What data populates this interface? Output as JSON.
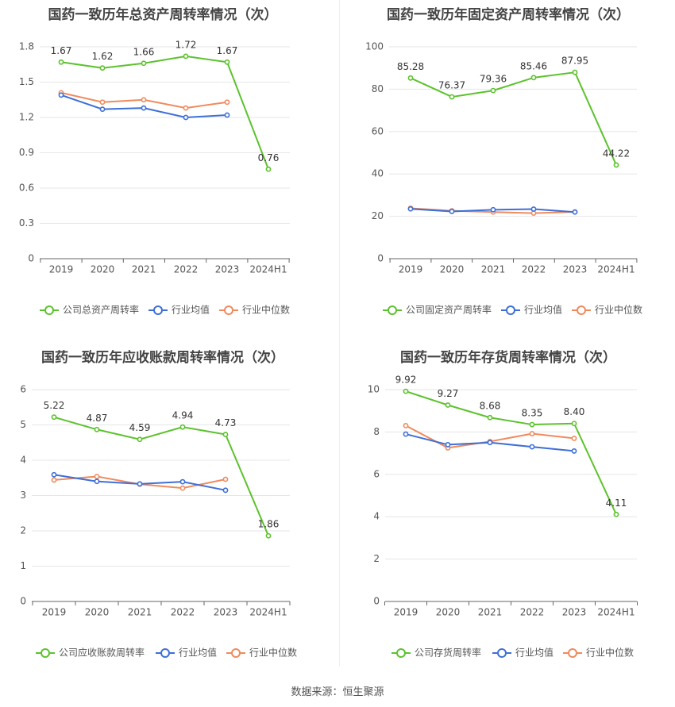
{
  "source_text": "数据来源：恒生聚源",
  "colors": {
    "company": "#5cc22d",
    "avg": "#3e6fd7",
    "median": "#f08a5d",
    "grid": "#e6e6e6",
    "axis": "#666666"
  },
  "chart_data": [
    {
      "type": "line",
      "title": "国药一致历年总资产周转率情况（次）",
      "categories": [
        "2019",
        "2020",
        "2021",
        "2022",
        "2023",
        "2024H1"
      ],
      "yticks": [
        "0",
        "0.3",
        "0.6",
        "0.9",
        "1.2",
        "1.5",
        "1.8"
      ],
      "ylim": [
        0,
        1.8
      ],
      "series": [
        {
          "name": "公司总资产周转率",
          "values": [
            1.67,
            1.62,
            1.66,
            1.72,
            1.67,
            0.76
          ],
          "labels": [
            "1.67",
            "1.62",
            "1.66",
            "1.72",
            "1.67",
            "0.76"
          ]
        },
        {
          "name": "行业均值",
          "values": [
            1.39,
            1.27,
            1.28,
            1.2,
            1.22,
            null
          ]
        },
        {
          "name": "行业中位数",
          "values": [
            1.41,
            1.33,
            1.35,
            1.28,
            1.33,
            null
          ]
        }
      ]
    },
    {
      "type": "line",
      "title": "国药一致历年固定资产周转率情况（次）",
      "categories": [
        "2019",
        "2020",
        "2021",
        "2022",
        "2023",
        "2024H1"
      ],
      "yticks": [
        "0",
        "20",
        "40",
        "60",
        "80",
        "100"
      ],
      "ylim": [
        0,
        100
      ],
      "series": [
        {
          "name": "公司固定资产周转率",
          "values": [
            85.28,
            76.37,
            79.36,
            85.46,
            87.95,
            44.22
          ],
          "labels": [
            "85.28",
            "76.37",
            "79.36",
            "85.46",
            "87.95",
            "44.22"
          ]
        },
        {
          "name": "行业均值",
          "values": [
            23.5,
            22.3,
            23.1,
            23.4,
            22.0,
            null
          ]
        },
        {
          "name": "行业中位数",
          "values": [
            23.8,
            22.6,
            22.0,
            21.5,
            22.1,
            null
          ]
        }
      ]
    },
    {
      "type": "line",
      "title": "国药一致历年应收账款周转率情况（次）",
      "categories": [
        "2019",
        "2020",
        "2021",
        "2022",
        "2023",
        "2024H1"
      ],
      "yticks": [
        "0",
        "1",
        "2",
        "3",
        "4",
        "5",
        "6"
      ],
      "ylim": [
        0,
        6
      ],
      "series": [
        {
          "name": "公司应收账款周转率",
          "values": [
            5.22,
            4.87,
            4.59,
            4.94,
            4.73,
            1.86
          ],
          "labels": [
            "5.22",
            "4.87",
            "4.59",
            "4.94",
            "4.73",
            "1.86"
          ]
        },
        {
          "name": "行业均值",
          "values": [
            3.59,
            3.4,
            3.33,
            3.39,
            3.15,
            null
          ]
        },
        {
          "name": "行业中位数",
          "values": [
            3.44,
            3.54,
            3.32,
            3.21,
            3.46,
            null
          ]
        }
      ]
    },
    {
      "type": "line",
      "title": "国药一致历年存货周转率情况（次）",
      "categories": [
        "2019",
        "2020",
        "2021",
        "2022",
        "2023",
        "2024H1"
      ],
      "yticks": [
        "0",
        "2",
        "4",
        "6",
        "8",
        "10"
      ],
      "ylim": [
        0,
        10
      ],
      "series": [
        {
          "name": "公司存货周转率",
          "values": [
            9.92,
            9.27,
            8.68,
            8.35,
            8.4,
            4.11
          ],
          "labels": [
            "9.92",
            "9.27",
            "8.68",
            "8.35",
            "8.40",
            "4.11"
          ]
        },
        {
          "name": "行业均值",
          "values": [
            7.9,
            7.4,
            7.5,
            7.3,
            7.1,
            null
          ]
        },
        {
          "name": "行业中位数",
          "values": [
            8.3,
            7.25,
            7.55,
            7.92,
            7.7,
            null
          ]
        }
      ]
    }
  ]
}
